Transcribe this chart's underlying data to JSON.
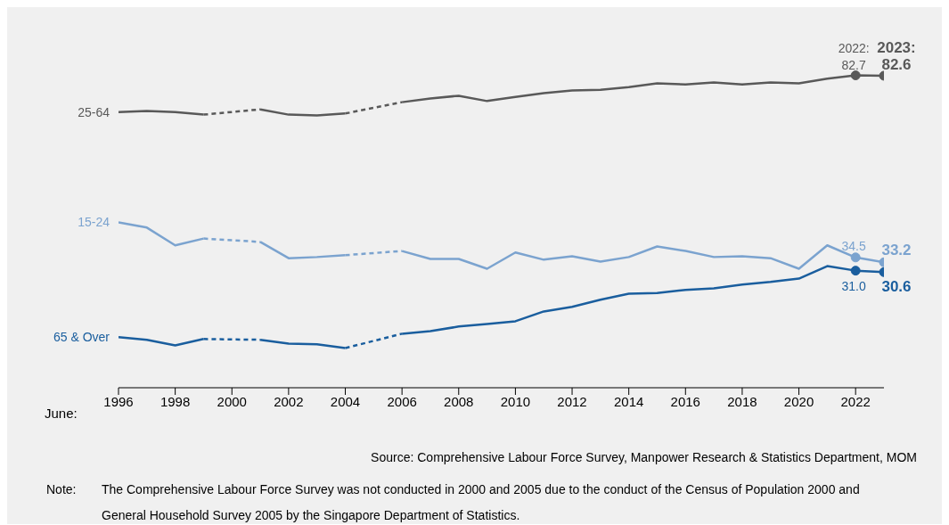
{
  "chart_data": {
    "type": "line",
    "xlabel": "June:",
    "x": [
      1996,
      1997,
      1998,
      1999,
      2000,
      2001,
      2002,
      2003,
      2004,
      2005,
      2006,
      2007,
      2008,
      2009,
      2010,
      2011,
      2012,
      2013,
      2014,
      2015,
      2016,
      2017,
      2018,
      2019,
      2020,
      2021,
      2022,
      2023
    ],
    "xlim": [
      1996,
      2023
    ],
    "xticks": [
      1996,
      1998,
      2000,
      2002,
      2004,
      2006,
      2008,
      2010,
      2012,
      2014,
      2016,
      2018,
      2020,
      2022
    ],
    "tick_labels": "x",
    "grid": false,
    "legend": false,
    "series": [
      {
        "name": "25-64",
        "color": "#595959",
        "values": [
          73.0,
          73.3,
          73.0,
          72.3,
          null,
          73.7,
          72.3,
          72.1,
          72.6,
          null,
          75.6,
          76.6,
          77.3,
          75.9,
          77.0,
          78.0,
          78.7,
          78.9,
          79.6,
          80.6,
          80.3,
          80.8,
          80.3,
          80.8,
          80.6,
          81.8,
          82.7,
          82.6
        ],
        "value_labels": [
          null,
          null,
          null,
          null,
          null,
          null,
          null,
          null,
          null,
          null,
          null,
          null,
          null,
          null,
          null,
          null,
          null,
          null,
          null,
          null,
          null,
          null,
          null,
          null,
          null,
          null,
          "2022: 82.7",
          "2023: 82.6"
        ]
      },
      {
        "name": "15-24",
        "color": "#7ba3cf",
        "values": [
          43.8,
          42.4,
          37.7,
          39.5,
          null,
          38.6,
          34.3,
          34.6,
          35.1,
          null,
          36.2,
          34.1,
          34.1,
          31.5,
          35.8,
          33.9,
          34.8,
          33.4,
          34.6,
          37.4,
          36.2,
          34.6,
          34.8,
          34.3,
          31.5,
          37.7,
          34.5,
          33.2
        ],
        "value_labels": [
          null,
          null,
          null,
          null,
          null,
          null,
          null,
          null,
          null,
          null,
          null,
          null,
          null,
          null,
          null,
          null,
          null,
          null,
          null,
          null,
          null,
          null,
          null,
          null,
          null,
          null,
          "34.5",
          "33.2"
        ]
      },
      {
        "name": "65 & Over",
        "color": "#1a5e9e",
        "values": [
          13.4,
          12.7,
          11.2,
          12.9,
          null,
          12.7,
          11.7,
          11.5,
          10.5,
          null,
          14.3,
          15.0,
          16.2,
          16.9,
          17.6,
          20.2,
          21.4,
          23.3,
          24.9,
          25.1,
          25.9,
          26.3,
          27.3,
          28.0,
          28.9,
          32.2,
          31.0,
          30.6
        ],
        "value_labels": [
          null,
          null,
          null,
          null,
          null,
          null,
          null,
          null,
          null,
          null,
          null,
          null,
          null,
          null,
          null,
          null,
          null,
          null,
          null,
          null,
          null,
          null,
          null,
          null,
          null,
          null,
          "31.0",
          "30.6"
        ]
      }
    ],
    "annotations": [
      "Source: Comprehensive Labour Force Survey, Manpower Research & Statistics Department, MOM",
      "Note: The Comprehensive Labour Force Survey was not conducted in 2000 and 2005 due to the conduct of the Census of Population 2000 and General Household Survey 2005 by the Singapore Department of Statistics."
    ]
  }
}
